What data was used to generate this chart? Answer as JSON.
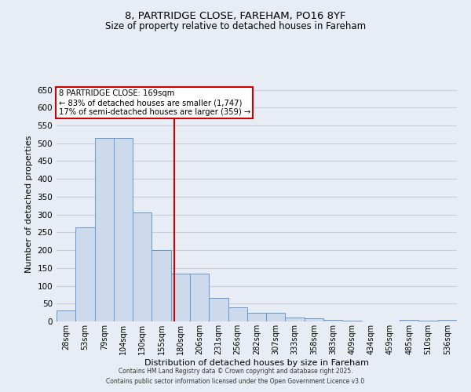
{
  "title1": "8, PARTRIDGE CLOSE, FAREHAM, PO16 8YF",
  "title2": "Size of property relative to detached houses in Fareham",
  "xlabel": "Distribution of detached houses by size in Fareham",
  "ylabel": "Number of detached properties",
  "categories": [
    "28sqm",
    "53sqm",
    "79sqm",
    "104sqm",
    "130sqm",
    "155sqm",
    "180sqm",
    "206sqm",
    "231sqm",
    "256sqm",
    "282sqm",
    "307sqm",
    "333sqm",
    "358sqm",
    "383sqm",
    "409sqm",
    "434sqm",
    "459sqm",
    "485sqm",
    "510sqm",
    "536sqm"
  ],
  "values": [
    30,
    265,
    515,
    515,
    305,
    200,
    135,
    135,
    65,
    40,
    25,
    25,
    12,
    8,
    5,
    2,
    1,
    1,
    5,
    2,
    5
  ],
  "bar_color": "#ccdaec",
  "bar_edge_color": "#6699cc",
  "grid_color": "#c8ccd8",
  "background_color": "#e8edf5",
  "vline_x": 5.67,
  "vline_color": "#cc0000",
  "annotation_text": "8 PARTRIDGE CLOSE: 169sqm\n← 83% of detached houses are smaller (1,747)\n17% of semi-detached houses are larger (359) →",
  "annotation_box_color": "#cc0000",
  "annotation_bg": "#ffffff",
  "ylim": [
    0,
    660
  ],
  "yticks": [
    0,
    50,
    100,
    150,
    200,
    250,
    300,
    350,
    400,
    450,
    500,
    550,
    600,
    650
  ],
  "footer1": "Contains HM Land Registry data © Crown copyright and database right 2025.",
  "footer2": "Contains public sector information licensed under the Open Government Licence v3.0"
}
